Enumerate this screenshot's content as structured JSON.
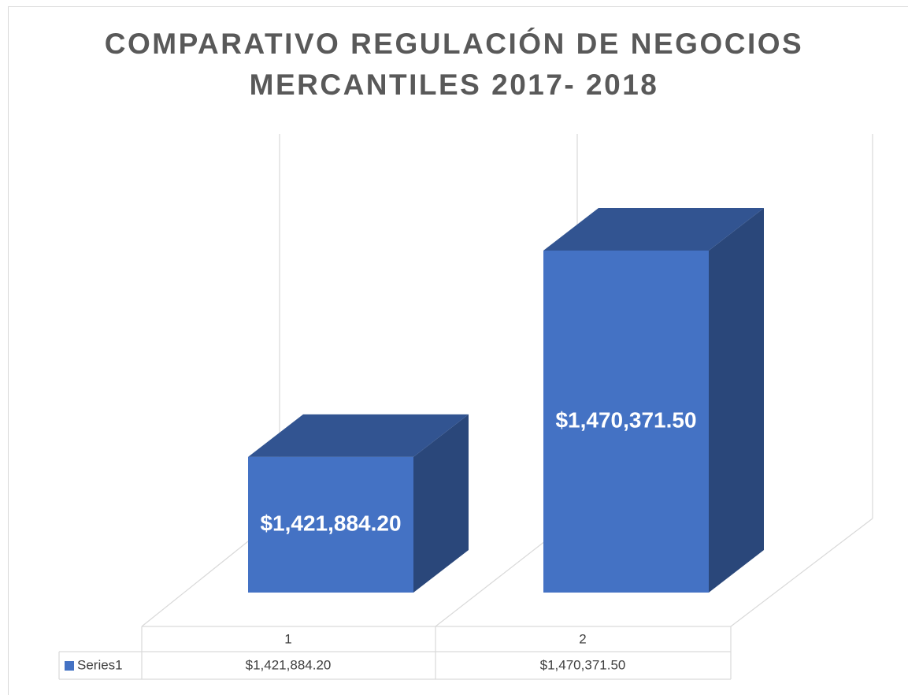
{
  "chart_data": {
    "type": "bar3d",
    "title": "COMPARATIVO REGULACIÓN DE NEGOCIOS MERCANTILES 2017- 2018",
    "categories": [
      "1",
      "2"
    ],
    "series": [
      {
        "name": "Series1",
        "color": "#4472c4",
        "values": [
          1421884.2,
          1470371.5
        ],
        "value_labels": [
          "$1,421,884.20",
          "$1,470,371.50"
        ]
      }
    ],
    "ylim": [
      1390000,
      1500000
    ],
    "data_table": true
  }
}
